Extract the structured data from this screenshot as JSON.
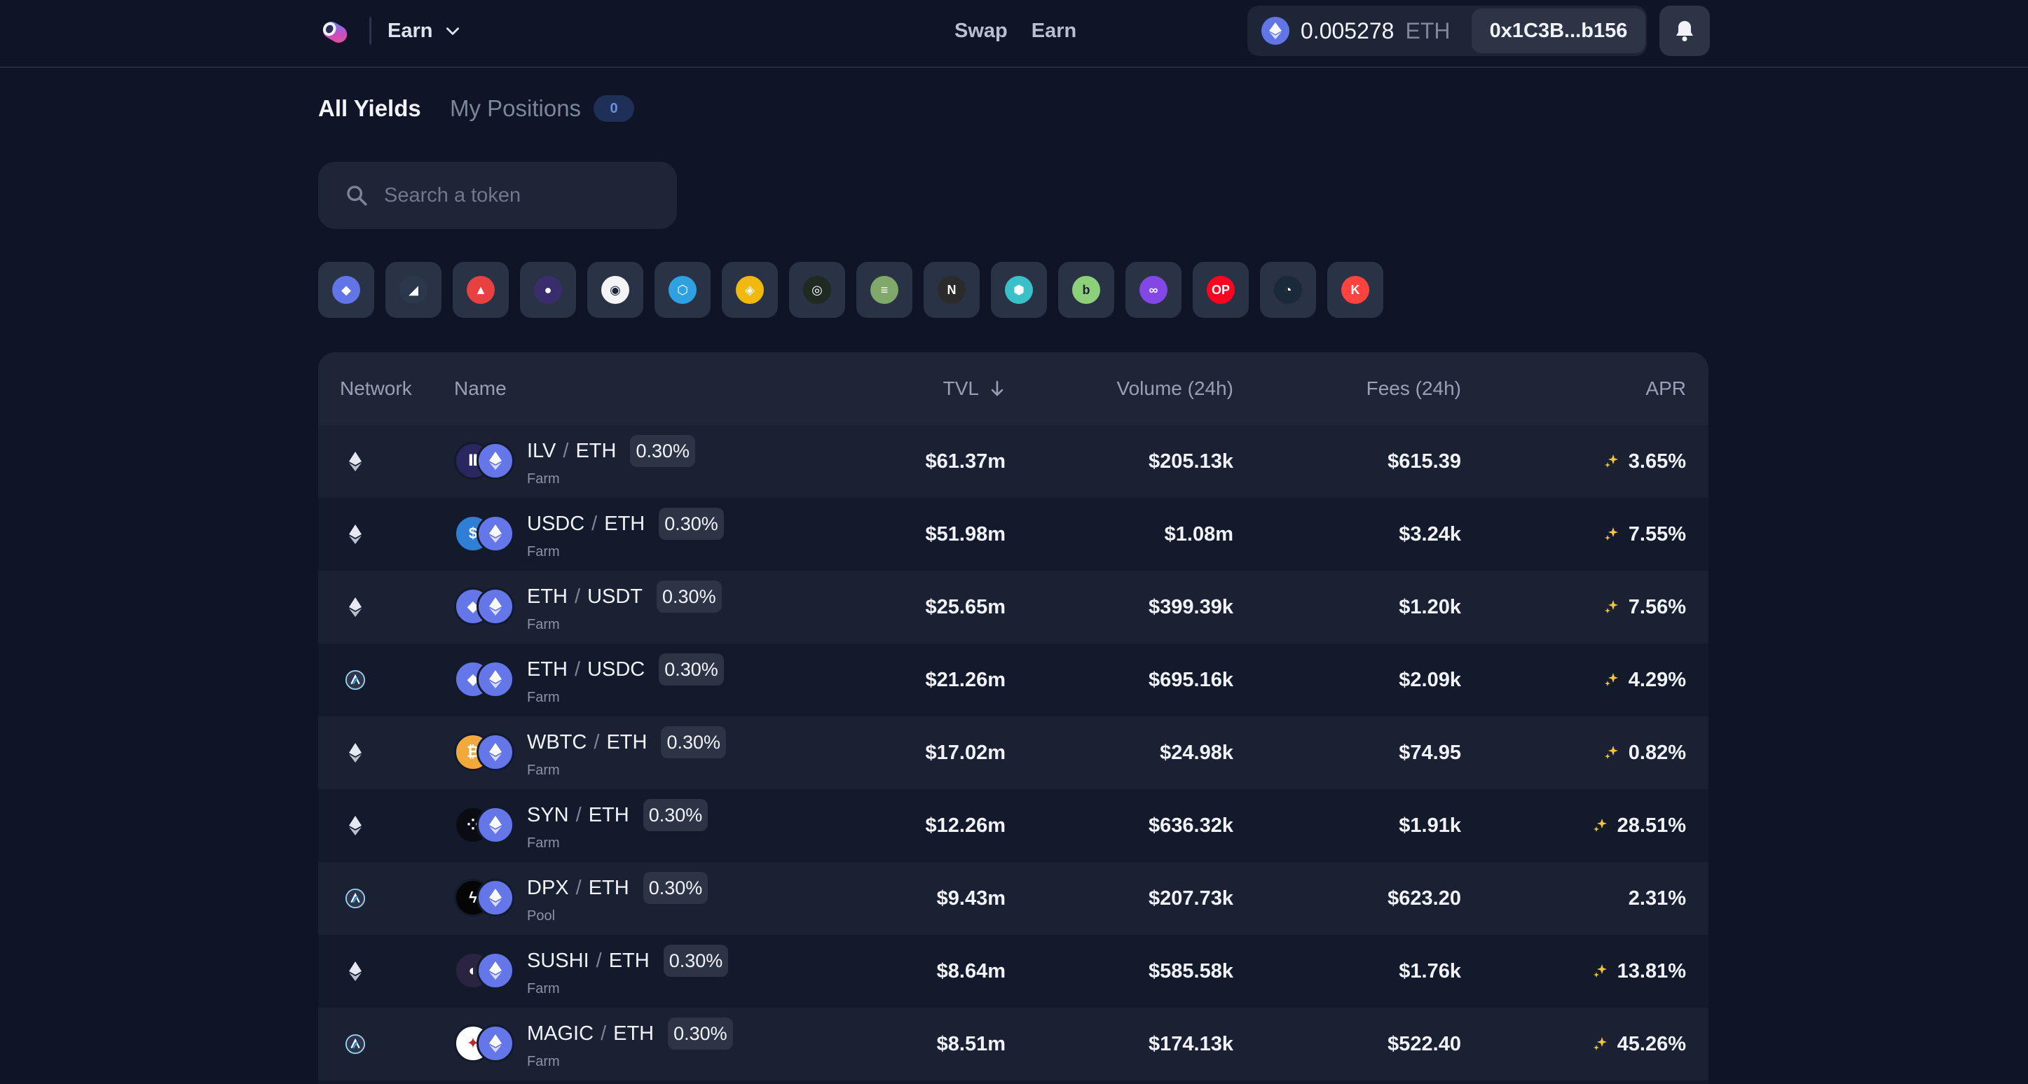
{
  "header": {
    "app_menu_label": "Earn",
    "nav": [
      "Swap",
      "Earn"
    ],
    "balance": "0.005278",
    "balance_unit": "ETH",
    "address": "0x1C3B...b156"
  },
  "tabs": {
    "all": "All Yields",
    "my": "My Positions",
    "my_count": "0"
  },
  "search": {
    "placeholder": "Search a token"
  },
  "networks": [
    {
      "name": "ethereum",
      "color": "#6275e6",
      "glyph": "◆"
    },
    {
      "name": "arbitrum",
      "color": "#2d374b",
      "glyph": "◢"
    },
    {
      "name": "avalanche",
      "color": "#e84142",
      "glyph": "▲"
    },
    {
      "name": "fantom-like",
      "color": "#3a2d6e",
      "glyph": "●"
    },
    {
      "name": "gnosis-like",
      "color": "#f3f4f6",
      "glyph": "◉"
    },
    {
      "name": "base-like",
      "color": "#2fa0e0",
      "glyph": "⬡"
    },
    {
      "name": "bnb",
      "color": "#f0b90b",
      "glyph": "◈"
    },
    {
      "name": "chain-link",
      "color": "#1f2a22",
      "glyph": "◎"
    },
    {
      "name": "layers",
      "color": "#7fa86a",
      "glyph": "≡"
    },
    {
      "name": "n-chain",
      "color": "#2b2b2b",
      "glyph": "N"
    },
    {
      "name": "hex-chain",
      "color": "#3cc0c8",
      "glyph": "⬢"
    },
    {
      "name": "b-chain",
      "color": "#8cd07a",
      "glyph": "b"
    },
    {
      "name": "polygon",
      "color": "#8247e5",
      "glyph": "∞"
    },
    {
      "name": "optimism",
      "color": "#ff0420",
      "glyph": "OP"
    },
    {
      "name": "gauge-chain",
      "color": "#1b2a3a",
      "glyph": "◔"
    },
    {
      "name": "kava",
      "color": "#ff433e",
      "glyph": "K"
    }
  ],
  "table": {
    "columns": [
      "Network",
      "Name",
      "TVL",
      "Volume (24h)",
      "Fees (24h)",
      "APR"
    ],
    "rows": [
      {
        "network": "ethereum",
        "t1": "ILV",
        "t2": "ETH",
        "fee": "0.30%",
        "type": "Farm",
        "tvl": "$61.37m",
        "vol": "$205.13k",
        "fees": "$615.39",
        "apr": "3.65%",
        "boost": true,
        "t1_color": "#2a2660",
        "t1_glyph": "Ⅱ"
      },
      {
        "network": "ethereum",
        "t1": "USDC",
        "t2": "ETH",
        "fee": "0.30%",
        "type": "Farm",
        "tvl": "$51.98m",
        "vol": "$1.08m",
        "fees": "$3.24k",
        "apr": "7.55%",
        "boost": true,
        "t1_color": "#2f7fd6",
        "t1_glyph": "$"
      },
      {
        "network": "ethereum",
        "t1": "ETH",
        "t2": "USDT",
        "fee": "0.30%",
        "type": "Farm",
        "tvl": "$25.65m",
        "vol": "$399.39k",
        "fees": "$1.20k",
        "apr": "7.56%",
        "boost": true,
        "t1_color": "#6476e8",
        "t1_glyph": "◆"
      },
      {
        "network": "arbitrum",
        "t1": "ETH",
        "t2": "USDC",
        "fee": "0.30%",
        "type": "Farm",
        "tvl": "$21.26m",
        "vol": "$695.16k",
        "fees": "$2.09k",
        "apr": "4.29%",
        "boost": true,
        "t1_color": "#6476e8",
        "t1_glyph": "◆"
      },
      {
        "network": "ethereum",
        "t1": "WBTC",
        "t2": "ETH",
        "fee": "0.30%",
        "type": "Farm",
        "tvl": "$17.02m",
        "vol": "$24.98k",
        "fees": "$74.95",
        "apr": "0.82%",
        "boost": true,
        "t1_color": "#f2a93b",
        "t1_glyph": "₿"
      },
      {
        "network": "ethereum",
        "t1": "SYN",
        "t2": "ETH",
        "fee": "0.30%",
        "type": "Farm",
        "tvl": "$12.26m",
        "vol": "$636.32k",
        "fees": "$1.91k",
        "apr": "28.51%",
        "boost": true,
        "t1_color": "#0b0b14",
        "t1_glyph": "⁘"
      },
      {
        "network": "arbitrum",
        "t1": "DPX",
        "t2": "ETH",
        "fee": "0.30%",
        "type": "Pool",
        "tvl": "$9.43m",
        "vol": "$207.73k",
        "fees": "$623.20",
        "apr": "2.31%",
        "boost": false,
        "t1_color": "#050505",
        "t1_glyph": "ϟ"
      },
      {
        "network": "ethereum",
        "t1": "SUSHI",
        "t2": "ETH",
        "fee": "0.30%",
        "type": "Farm",
        "tvl": "$8.64m",
        "vol": "$585.58k",
        "fees": "$1.76k",
        "apr": "13.81%",
        "boost": true,
        "t1_color": "#2a2440",
        "t1_glyph": "◐"
      },
      {
        "network": "arbitrum",
        "t1": "MAGIC",
        "t2": "ETH",
        "fee": "0.30%",
        "type": "Farm",
        "tvl": "$8.51m",
        "vol": "$174.13k",
        "fees": "$522.40",
        "apr": "45.26%",
        "boost": true,
        "t1_color": "#ffffff",
        "t1_glyph": "✦"
      }
    ]
  }
}
